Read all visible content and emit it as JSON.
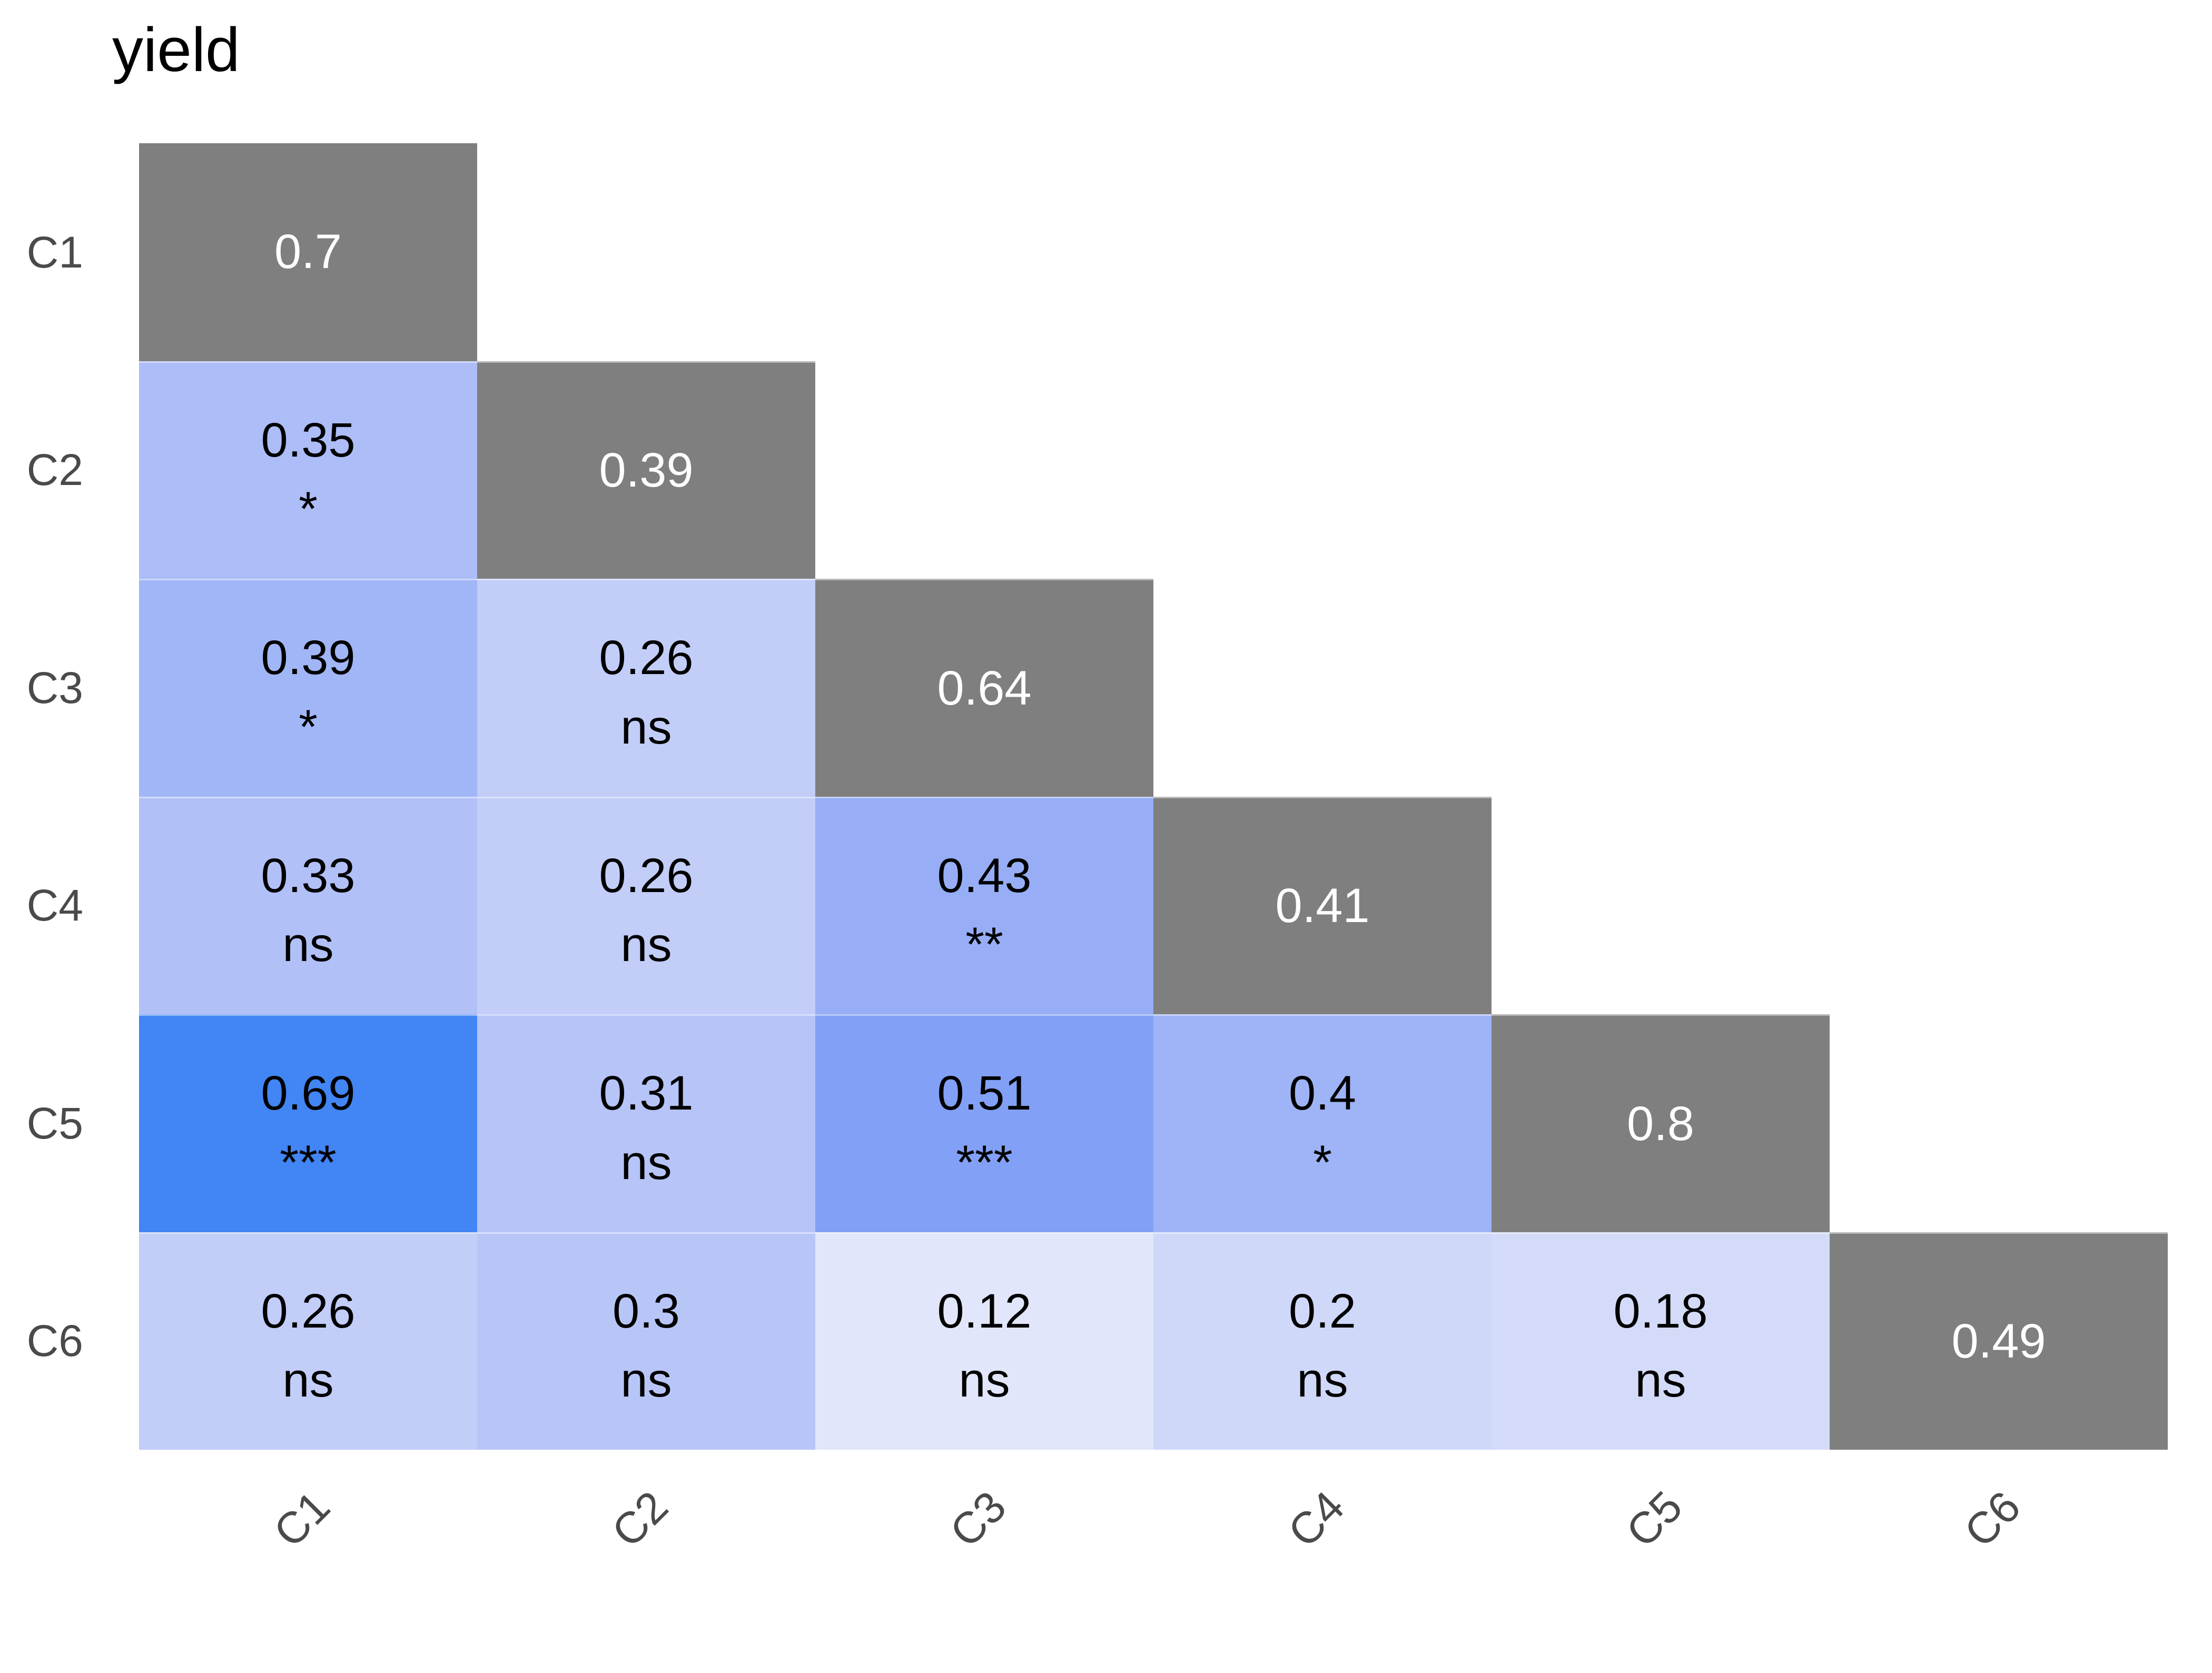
{
  "chart_data": {
    "type": "heatmap",
    "title": "yield",
    "layout": "lower-triangular-correlation-matrix-with-diagonal",
    "variables": [
      "C1",
      "C2",
      "C3",
      "C4",
      "C5",
      "C6"
    ],
    "x_tick_labels": [
      "C1",
      "C2",
      "C3",
      "C4",
      "C5",
      "C6"
    ],
    "y_tick_labels": [
      "C1",
      "C2",
      "C3",
      "C4",
      "C5",
      "C6"
    ],
    "x_tick_angle": 45,
    "grid": false,
    "legend": false,
    "diagonal_values": [
      0.7,
      0.39,
      0.64,
      0.41,
      0.8,
      0.49
    ],
    "cells": [
      {
        "row": "C2",
        "col": "C1",
        "value": 0.35,
        "significance": "*",
        "fill": "#ACBDF7"
      },
      {
        "row": "C3",
        "col": "C1",
        "value": 0.39,
        "significance": "*",
        "fill": "#A1B6F6"
      },
      {
        "row": "C3",
        "col": "C2",
        "value": 0.26,
        "significance": "ns",
        "fill": "#C2CDF8"
      },
      {
        "row": "C4",
        "col": "C1",
        "value": 0.33,
        "significance": "ns",
        "fill": "#B1C0F7"
      },
      {
        "row": "C4",
        "col": "C2",
        "value": 0.26,
        "significance": "ns",
        "fill": "#C2CDF8"
      },
      {
        "row": "C4",
        "col": "C3",
        "value": 0.43,
        "significance": "**",
        "fill": "#97AEF6"
      },
      {
        "row": "C5",
        "col": "C1",
        "value": 0.69,
        "significance": "***",
        "fill": "#4285F4"
      },
      {
        "row": "C5",
        "col": "C2",
        "value": 0.31,
        "significance": "ns",
        "fill": "#B6C4F7"
      },
      {
        "row": "C5",
        "col": "C3",
        "value": 0.51,
        "significance": "***",
        "fill": "#82A0F5"
      },
      {
        "row": "C5",
        "col": "C4",
        "value": 0.4,
        "significance": "*",
        "fill": "#9FB4F6"
      },
      {
        "row": "C6",
        "col": "C1",
        "value": 0.26,
        "significance": "ns",
        "fill": "#C2CDF8"
      },
      {
        "row": "C6",
        "col": "C2",
        "value": 0.3,
        "significance": "ns",
        "fill": "#B8C6F7"
      },
      {
        "row": "C6",
        "col": "C3",
        "value": 0.12,
        "significance": "ns",
        "fill": "#E2E6FA"
      },
      {
        "row": "C6",
        "col": "C4",
        "value": 0.2,
        "significance": "ns",
        "fill": "#CFD8F9"
      },
      {
        "row": "C6",
        "col": "C5",
        "value": 0.18,
        "significance": "ns",
        "fill": "#D4DBF9"
      }
    ],
    "colors": {
      "diagonal_fill": "#7F7F7F",
      "diagonal_text": "#FFFFFF",
      "cell_text": "#000000",
      "axis_text": "#4A4A4A",
      "title_text": "#000000",
      "background": "#FFFFFF",
      "scale_low": "#FFFFFF",
      "scale_high": "#4285F4"
    }
  }
}
